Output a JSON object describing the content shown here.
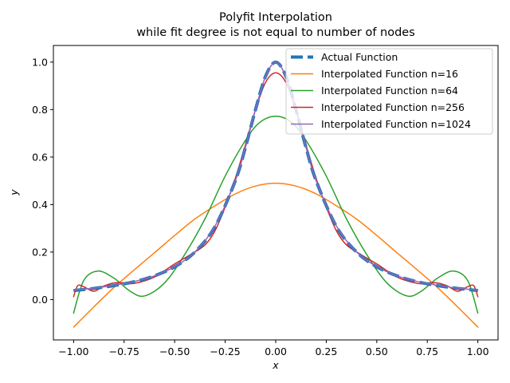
{
  "chart_data": {
    "type": "line",
    "title_line1": "Polyfit Interpolation",
    "title_line2": "while fit degree is not equal to number of nodes",
    "xlabel": "x",
    "ylabel": "y",
    "xlim": [
      -1.1,
      1.1
    ],
    "ylim": [
      -0.17,
      1.07
    ],
    "xticks": [
      -1.0,
      -0.75,
      -0.5,
      -0.25,
      0.0,
      0.25,
      0.5,
      0.75,
      1.0
    ],
    "xtick_labels": [
      "−1.00",
      "−0.75",
      "−0.50",
      "−0.25",
      "0.00",
      "0.25",
      "0.50",
      "0.75",
      "1.00"
    ],
    "yticks": [
      0.0,
      0.2,
      0.4,
      0.6,
      0.8,
      1.0
    ],
    "ytick_labels": [
      "0.0",
      "0.2",
      "0.4",
      "0.6",
      "0.8",
      "1.0"
    ],
    "grid": false,
    "legend_position": "upper right",
    "series": [
      {
        "name": "Actual Function",
        "color": "#1f77b4",
        "style": "dashed-thick",
        "x": [
          -1.0,
          -0.9,
          -0.8,
          -0.7,
          -0.6,
          -0.5,
          -0.4,
          -0.3,
          -0.2,
          -0.15,
          -0.1,
          -0.05,
          0.0,
          0.05,
          0.1,
          0.15,
          0.2,
          0.3,
          0.4,
          0.5,
          0.6,
          0.7,
          0.8,
          0.9,
          1.0
        ],
        "y": [
          0.038,
          0.047,
          0.059,
          0.075,
          0.1,
          0.138,
          0.2,
          0.308,
          0.5,
          0.64,
          0.8,
          0.941,
          1.0,
          0.941,
          0.8,
          0.64,
          0.5,
          0.308,
          0.2,
          0.138,
          0.1,
          0.075,
          0.059,
          0.047,
          0.038
        ]
      },
      {
        "name": "Interpolated Function n=16",
        "color": "#ff7f0e",
        "style": "solid",
        "x": [
          -1.0,
          -0.9,
          -0.8,
          -0.7,
          -0.6,
          -0.5,
          -0.4,
          -0.3,
          -0.2,
          -0.1,
          0.0,
          0.1,
          0.2,
          0.3,
          0.4,
          0.5,
          0.6,
          0.7,
          0.8,
          0.9,
          1.0
        ],
        "y": [
          -0.116,
          -0.031,
          0.051,
          0.125,
          0.197,
          0.27,
          0.339,
          0.395,
          0.445,
          0.478,
          0.49,
          0.478,
          0.445,
          0.395,
          0.339,
          0.27,
          0.197,
          0.125,
          0.051,
          -0.031,
          -0.116
        ]
      },
      {
        "name": "Interpolated Function n=64",
        "color": "#2ca02c",
        "style": "solid",
        "x": [
          -1.0,
          -0.95,
          -0.88,
          -0.8,
          -0.72,
          -0.65,
          -0.55,
          -0.45,
          -0.35,
          -0.25,
          -0.15,
          -0.08,
          0.0,
          0.08,
          0.15,
          0.25,
          0.35,
          0.45,
          0.55,
          0.65,
          0.72,
          0.8,
          0.88,
          0.95,
          1.0
        ],
        "y": [
          -0.057,
          0.08,
          0.12,
          0.09,
          0.035,
          0.015,
          0.07,
          0.19,
          0.34,
          0.52,
          0.67,
          0.745,
          0.772,
          0.745,
          0.67,
          0.52,
          0.34,
          0.19,
          0.07,
          0.015,
          0.035,
          0.09,
          0.12,
          0.08,
          -0.057
        ]
      },
      {
        "name": "Interpolated Function n=256",
        "color": "#d62728",
        "style": "solid",
        "x": [
          -1.0,
          -0.98,
          -0.95,
          -0.9,
          -0.85,
          -0.8,
          -0.75,
          -0.7,
          -0.6,
          -0.5,
          -0.42,
          -0.35,
          -0.3,
          -0.25,
          -0.2,
          -0.15,
          -0.1,
          -0.05,
          0.0,
          0.05,
          0.1,
          0.15,
          0.2,
          0.25,
          0.3,
          0.35,
          0.42,
          0.5,
          0.6,
          0.7,
          0.75,
          0.8,
          0.85,
          0.9,
          0.95,
          0.98,
          1.0
        ],
        "y": [
          0.012,
          0.058,
          0.054,
          0.035,
          0.057,
          0.07,
          0.07,
          0.068,
          0.095,
          0.15,
          0.19,
          0.23,
          0.29,
          0.39,
          0.51,
          0.65,
          0.8,
          0.915,
          0.955,
          0.915,
          0.8,
          0.65,
          0.51,
          0.39,
          0.29,
          0.23,
          0.19,
          0.15,
          0.095,
          0.068,
          0.07,
          0.07,
          0.057,
          0.035,
          0.054,
          0.058,
          0.012
        ]
      },
      {
        "name": "Interpolated Function n=1024",
        "color": "#9467bd",
        "style": "solid",
        "x": [
          -1.0,
          -0.9,
          -0.8,
          -0.7,
          -0.6,
          -0.5,
          -0.4,
          -0.3,
          -0.2,
          -0.15,
          -0.1,
          -0.05,
          0.0,
          0.05,
          0.1,
          0.15,
          0.2,
          0.3,
          0.4,
          0.5,
          0.6,
          0.7,
          0.8,
          0.9,
          1.0
        ],
        "y": [
          0.04,
          0.048,
          0.06,
          0.076,
          0.1,
          0.139,
          0.2,
          0.31,
          0.5,
          0.64,
          0.8,
          0.94,
          1.0,
          0.94,
          0.8,
          0.64,
          0.5,
          0.31,
          0.2,
          0.139,
          0.1,
          0.076,
          0.06,
          0.048,
          0.04
        ]
      }
    ]
  }
}
